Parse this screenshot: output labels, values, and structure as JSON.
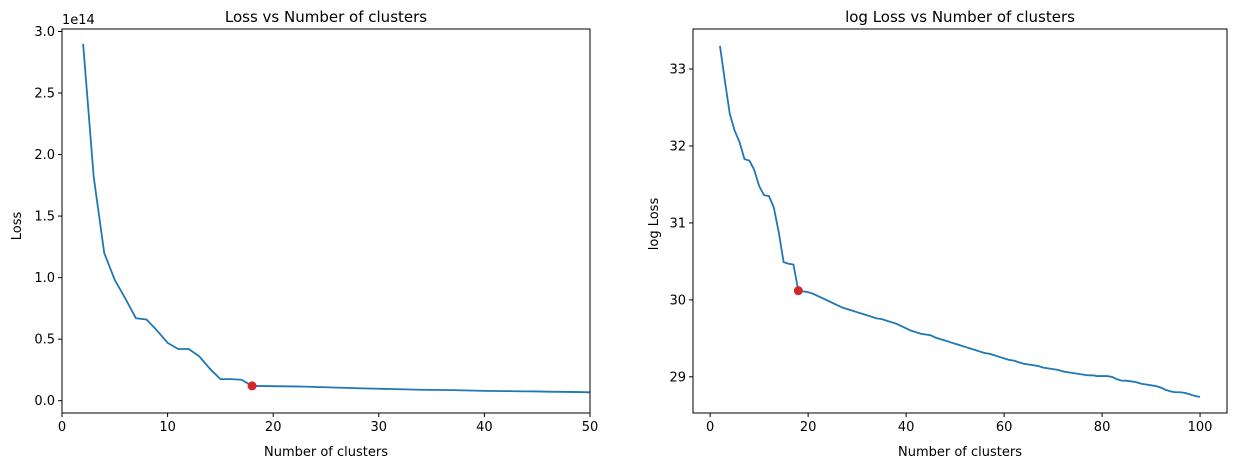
{
  "chart_data": [
    {
      "type": "line",
      "title": "Loss vs Number of clusters",
      "xlabel": "Number of clusters",
      "ylabel": "Loss",
      "xlim": [
        0,
        50
      ],
      "ylim": [
        -0.1,
        3.02
      ],
      "y_scale_label": "1e14",
      "x_ticks": [
        0,
        10,
        20,
        30,
        40,
        50
      ],
      "y_ticks": [
        0.0,
        0.5,
        1.0,
        1.5,
        2.0,
        2.5,
        3.0
      ],
      "x_tick_labels": [
        "0",
        "10",
        "20",
        "30",
        "40",
        "50"
      ],
      "y_tick_labels": [
        "0.0",
        "0.5",
        "1.0",
        "1.5",
        "2.0",
        "2.5",
        "3.0"
      ],
      "grid": false,
      "line_color": "#1f77b4",
      "marker_color": "#d62728",
      "series": [
        {
          "x": [
            2,
            3,
            4,
            5,
            6,
            7,
            8,
            9,
            10,
            11,
            12,
            13,
            14,
            15,
            16,
            17,
            18,
            19,
            20,
            21,
            22,
            23,
            24,
            25,
            26,
            27,
            28,
            29,
            30,
            31,
            32,
            33,
            34,
            35,
            36,
            37,
            38,
            39,
            40,
            41,
            42,
            43,
            44,
            45,
            46,
            47,
            48,
            49,
            50
          ],
          "values": [
            2.9,
            1.82,
            1.2,
            0.98,
            0.83,
            0.67,
            0.66,
            0.57,
            0.47,
            0.42,
            0.42,
            0.36,
            0.26,
            0.175,
            0.175,
            0.17,
            0.12,
            0.119,
            0.118,
            0.117,
            0.116,
            0.114,
            0.111,
            0.109,
            0.106,
            0.104,
            0.101,
            0.099,
            0.097,
            0.095,
            0.093,
            0.091,
            0.089,
            0.088,
            0.087,
            0.086,
            0.084,
            0.082,
            0.08,
            0.079,
            0.078,
            0.077,
            0.076,
            0.075,
            0.073,
            0.072,
            0.071,
            0.07,
            0.068
          ]
        }
      ],
      "highlight": {
        "x": 18,
        "y": 0.12
      }
    },
    {
      "type": "line",
      "title": "log Loss vs Number of clusters",
      "xlabel": "Number of clusters",
      "ylabel": "log Loss",
      "xlim": [
        -3.5,
        105.5
      ],
      "ylim": [
        28.53,
        33.52
      ],
      "x_ticks": [
        0,
        20,
        40,
        60,
        80,
        100
      ],
      "y_ticks": [
        29,
        30,
        31,
        32,
        33
      ],
      "x_tick_labels": [
        "0",
        "20",
        "40",
        "60",
        "80",
        "100"
      ],
      "y_tick_labels": [
        "29",
        "30",
        "31",
        "32",
        "33"
      ],
      "grid": false,
      "line_color": "#1f77b4",
      "marker_color": "#d62728",
      "series": [
        {
          "x": [
            2,
            3,
            4,
            5,
            6,
            7,
            8,
            9,
            10,
            11,
            12,
            13,
            14,
            15,
            16,
            17,
            18,
            19,
            20,
            21,
            22,
            23,
            24,
            25,
            26,
            27,
            28,
            29,
            30,
            31,
            32,
            33,
            34,
            35,
            36,
            37,
            38,
            39,
            40,
            41,
            42,
            43,
            44,
            45,
            46,
            47,
            48,
            49,
            50,
            51,
            52,
            53,
            54,
            55,
            56,
            57,
            58,
            59,
            60,
            61,
            62,
            63,
            64,
            65,
            66,
            67,
            68,
            69,
            70,
            71,
            72,
            73,
            74,
            75,
            76,
            77,
            78,
            79,
            80,
            81,
            82,
            83,
            84,
            85,
            86,
            87,
            88,
            89,
            90,
            91,
            92,
            93,
            94,
            95,
            96,
            97,
            98,
            99,
            100
          ],
          "values": [
            33.3,
            32.85,
            32.42,
            32.2,
            32.05,
            31.83,
            31.81,
            31.69,
            31.48,
            31.36,
            31.35,
            31.2,
            30.88,
            30.49,
            30.47,
            30.46,
            30.12,
            30.11,
            30.1,
            30.08,
            30.05,
            30.02,
            29.99,
            29.96,
            29.93,
            29.9,
            29.88,
            29.86,
            29.84,
            29.82,
            29.8,
            29.78,
            29.76,
            29.75,
            29.73,
            29.71,
            29.69,
            29.66,
            29.63,
            29.6,
            29.58,
            29.56,
            29.55,
            29.54,
            29.51,
            29.49,
            29.47,
            29.45,
            29.43,
            29.41,
            29.39,
            29.37,
            29.35,
            29.33,
            29.31,
            29.3,
            29.28,
            29.26,
            29.24,
            29.22,
            29.21,
            29.19,
            29.17,
            29.16,
            29.15,
            29.14,
            29.12,
            29.11,
            29.1,
            29.09,
            29.07,
            29.06,
            29.05,
            29.04,
            29.03,
            29.02,
            29.02,
            29.01,
            29.01,
            29.01,
            29.0,
            28.97,
            28.95,
            28.95,
            28.94,
            28.93,
            28.91,
            28.9,
            28.89,
            28.88,
            28.86,
            28.83,
            28.81,
            28.8,
            28.8,
            28.79,
            28.77,
            28.75,
            28.74
          ]
        }
      ],
      "highlight": {
        "x": 18,
        "y": 30.12
      }
    }
  ]
}
